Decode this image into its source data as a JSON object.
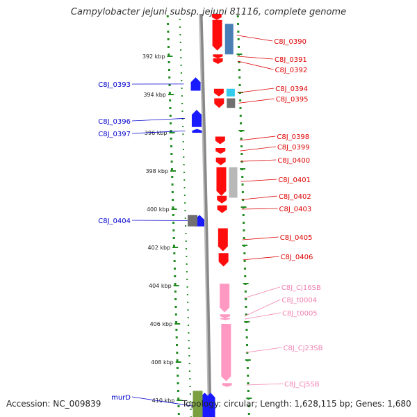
{
  "title": "Campylobacter jejuni subsp. jejuni 81116, complete genome",
  "footer": {
    "accession": "Accession: NC_009839",
    "topology": "Topology: circular; Length: 1,628,115 bp; Genes: 1,680"
  },
  "colors": {
    "blue": "#1a1aff",
    "red": "#ff0d0d",
    "pink": "#ff99c2",
    "pink_label": "#f080b0",
    "steelblue": "#4a7fb5",
    "grey": "#707070",
    "lightgrey": "#b8b8b8",
    "olive": "#7aa040",
    "cyan": "#33ccee",
    "tick_green": "#228B22",
    "backbone": "#999999",
    "label_blue": "#0000cc",
    "label_red": "#dd0000"
  },
  "ruler": {
    "ticks": [
      {
        "kbp": 392,
        "label": "392 kbp"
      },
      {
        "kbp": 394,
        "label": "394 kbp"
      },
      {
        "kbp": 396,
        "label": "396 kbp"
      },
      {
        "kbp": 398,
        "label": "398 kbp"
      },
      {
        "kbp": 400,
        "label": "400 kbp"
      },
      {
        "kbp": 402,
        "label": "402 kbp"
      },
      {
        "kbp": 404,
        "label": "404 kbp"
      },
      {
        "kbp": 406,
        "label": "406 kbp"
      },
      {
        "kbp": 408,
        "label": "408 kbp"
      },
      {
        "kbp": 410,
        "label": "410 kbp"
      }
    ]
  },
  "genes_left": [
    {
      "label": "C8J_0393",
      "color": "blue",
      "start": 393.1,
      "end": 393.8,
      "track": "inner"
    },
    {
      "label": "C8J_0396",
      "color": "blue",
      "start": 394.8,
      "end": 395.7,
      "track": "inner"
    },
    {
      "label": "C8J_0397",
      "color": "blue",
      "start": 395.8,
      "end": 396.0,
      "track": "inner"
    },
    {
      "label": "C8J_0404",
      "color": "blue",
      "start": 400.3,
      "end": 400.9,
      "track": "inner"
    },
    {
      "label": "",
      "color": "grey",
      "start": 400.3,
      "end": 400.9,
      "track": "outer"
    },
    {
      "label": "murD",
      "color": "blue",
      "start": 409.6,
      "end": 411.0,
      "track": "inner"
    },
    {
      "label": "",
      "color": "olive",
      "start": 409.5,
      "end": 411.0,
      "track": "outer"
    }
  ],
  "genes_right": [
    {
      "label": "",
      "color": "red",
      "start": 389.6,
      "end": 390.1,
      "track": "inner"
    },
    {
      "label": "C8J_0390",
      "color": "red",
      "start": 390.1,
      "end": 391.7,
      "track": "inner"
    },
    {
      "label": "",
      "color": "steelblue",
      "start": 390.3,
      "end": 391.9,
      "track": "outer"
    },
    {
      "label": "C8J_0391",
      "color": "red",
      "start": 391.9,
      "end": 392.1,
      "track": "inner"
    },
    {
      "label": "C8J_0392",
      "color": "red",
      "start": 392.1,
      "end": 392.4,
      "track": "inner"
    },
    {
      "label": "C8J_0394",
      "color": "red",
      "start": 393.7,
      "end": 394.1,
      "track": "inner"
    },
    {
      "label": "",
      "color": "cyan",
      "start": 393.7,
      "end": 394.1,
      "track": "outer"
    },
    {
      "label": "C8J_0395",
      "color": "red",
      "start": 394.2,
      "end": 394.7,
      "track": "inner"
    },
    {
      "label": "",
      "color": "grey",
      "start": 394.2,
      "end": 394.7,
      "track": "outer"
    },
    {
      "label": "C8J_0398",
      "color": "red",
      "start": 396.2,
      "end": 396.6,
      "track": "inner"
    },
    {
      "label": "C8J_0399",
      "color": "red",
      "start": 396.8,
      "end": 397.1,
      "track": "inner"
    },
    {
      "label": "C8J_0400",
      "color": "red",
      "start": 397.3,
      "end": 397.7,
      "track": "inner"
    },
    {
      "label": "C8J_0401",
      "color": "red",
      "start": 397.8,
      "end": 399.3,
      "track": "inner"
    },
    {
      "label": "",
      "color": "lightgrey",
      "start": 397.8,
      "end": 399.4,
      "track": "outer"
    },
    {
      "label": "C8J_0402",
      "color": "red",
      "start": 399.3,
      "end": 399.7,
      "track": "inner"
    },
    {
      "label": "C8J_0403",
      "color": "red",
      "start": 399.8,
      "end": 400.2,
      "track": "inner"
    },
    {
      "label": "C8J_0405",
      "color": "red",
      "start": 401.0,
      "end": 402.2,
      "track": "inner"
    },
    {
      "label": "C8J_0406",
      "color": "red",
      "start": 402.3,
      "end": 403.0,
      "track": "inner"
    },
    {
      "label": "C8J_Cj16SB",
      "color": "pink",
      "start": 403.9,
      "end": 405.4,
      "track": "inner"
    },
    {
      "label": "C8J_t0004",
      "color": "pink",
      "start": 405.5,
      "end": 405.7,
      "track": "inner"
    },
    {
      "label": "C8J_t0005",
      "color": "pink",
      "start": 405.7,
      "end": 405.8,
      "track": "inner"
    },
    {
      "label": "C8J_Cj23SB",
      "color": "pink",
      "start": 406.0,
      "end": 409.0,
      "track": "inner"
    },
    {
      "label": "C8J_Cj5SB",
      "color": "pink",
      "start": 409.1,
      "end": 409.3,
      "track": "inner"
    },
    {
      "label": "",
      "color": "blue",
      "start": 409.6,
      "end": 411.0,
      "track": "innerleft"
    }
  ]
}
